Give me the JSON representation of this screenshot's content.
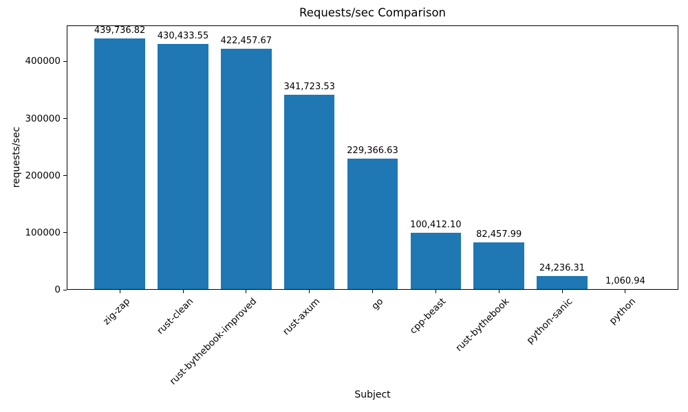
{
  "chart_data": {
    "type": "bar",
    "title": "Requests/sec Comparison",
    "xlabel": "Subject",
    "ylabel": "requests/sec",
    "categories": [
      "zig-zap",
      "rust-clean",
      "rust-bythebook-improved",
      "rust-axum",
      "go",
      "cpp-beast",
      "rust-bythebook",
      "python-sanic",
      "python"
    ],
    "values": [
      439736.82,
      430433.55,
      422457.67,
      341723.53,
      229366.63,
      100412.1,
      82457.99,
      24236.31,
      1060.94
    ],
    "value_labels": [
      "439,736.82",
      "430,433.55",
      "422,457.67",
      "341,723.53",
      "229,366.63",
      "100,412.10",
      "82,457.99",
      "24,236.31",
      "1,060.94"
    ],
    "yticks": [
      0,
      100000,
      200000,
      300000,
      400000
    ],
    "ylim": [
      0,
      463000
    ],
    "bar_color": "#1f77b4",
    "grid": false,
    "legend": null,
    "x_tick_rotation_deg": 45
  }
}
